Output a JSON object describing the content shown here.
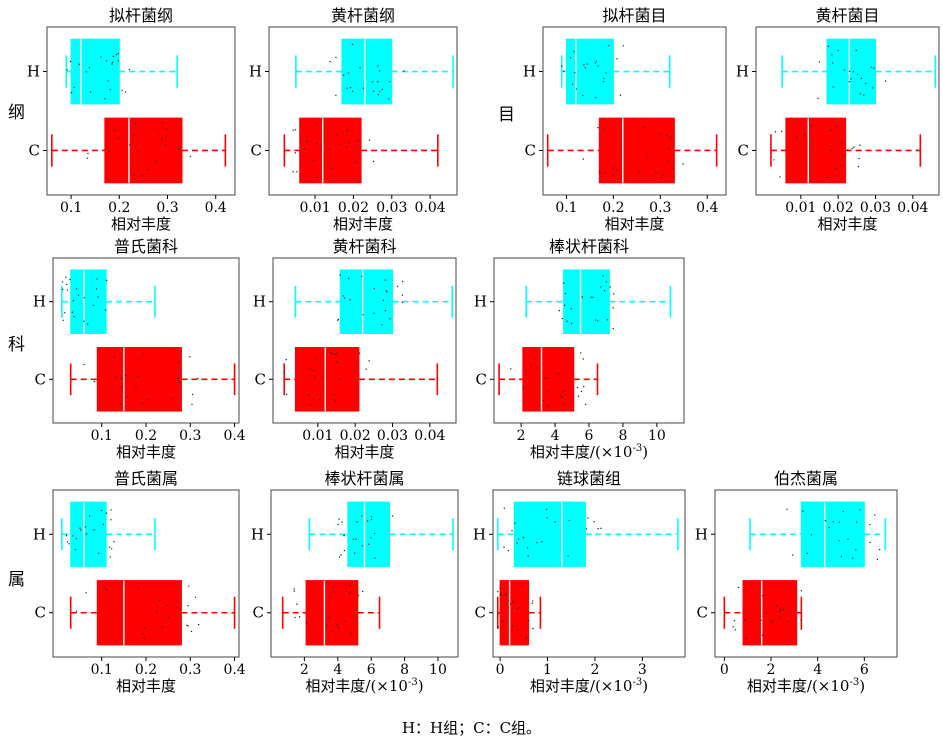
{
  "caption": "H：H组；C：C组。",
  "row_labels": [
    {
      "text": "纲",
      "panel": 0
    },
    {
      "text": "目",
      "panel": 2
    },
    {
      "text": "科",
      "panel": 4
    },
    {
      "text": "属",
      "panel": 7
    }
  ],
  "colors": {
    "H": "#00FFFF",
    "C": "#FF0000"
  },
  "chart_data": [
    {
      "type": "box",
      "title": "拟杆菌纲",
      "xlabel": "相对丰度",
      "xlim": [
        0.05,
        0.44
      ],
      "ticks": [
        0.1,
        0.2,
        0.3,
        0.4
      ],
      "tick_labels": [
        "0.1",
        "0.2",
        "0.3",
        "0.4"
      ],
      "groups": [
        {
          "name": "H",
          "min": 0.09,
          "q1": 0.1,
          "median": 0.12,
          "q3": 0.2,
          "max": 0.32
        },
        {
          "name": "C",
          "min": 0.06,
          "q1": 0.17,
          "median": 0.22,
          "q3": 0.33,
          "max": 0.42
        }
      ]
    },
    {
      "type": "box",
      "title": "黄杆菌纲",
      "xlabel": "相对丰度",
      "xlim": [
        -0.002,
        0.047
      ],
      "ticks": [
        0.01,
        0.02,
        0.03,
        0.04
      ],
      "tick_labels": [
        "0.01",
        "0.02",
        "0.03",
        "0.04"
      ],
      "groups": [
        {
          "name": "H",
          "min": 0.005,
          "q1": 0.017,
          "median": 0.023,
          "q3": 0.03,
          "max": 0.046
        },
        {
          "name": "C",
          "min": 0.002,
          "q1": 0.006,
          "median": 0.012,
          "q3": 0.022,
          "max": 0.042
        }
      ]
    },
    {
      "type": "box",
      "title": "拟杆菌目",
      "xlabel": "相对丰度",
      "xlim": [
        0.05,
        0.44
      ],
      "ticks": [
        0.1,
        0.2,
        0.3,
        0.4
      ],
      "tick_labels": [
        "0.1",
        "0.2",
        "0.3",
        "0.4"
      ],
      "groups": [
        {
          "name": "H",
          "min": 0.09,
          "q1": 0.1,
          "median": 0.12,
          "q3": 0.2,
          "max": 0.32
        },
        {
          "name": "C",
          "min": 0.06,
          "q1": 0.17,
          "median": 0.22,
          "q3": 0.33,
          "max": 0.42
        }
      ]
    },
    {
      "type": "box",
      "title": "黄杆菌目",
      "xlabel": "相对丰度",
      "xlim": [
        -0.002,
        0.047
      ],
      "ticks": [
        0.01,
        0.02,
        0.03,
        0.04
      ],
      "tick_labels": [
        "0.01",
        "0.02",
        "0.03",
        "0.04"
      ],
      "groups": [
        {
          "name": "H",
          "min": 0.005,
          "q1": 0.017,
          "median": 0.023,
          "q3": 0.03,
          "max": 0.046
        },
        {
          "name": "C",
          "min": 0.002,
          "q1": 0.006,
          "median": 0.012,
          "q3": 0.022,
          "max": 0.042
        }
      ]
    },
    {
      "type": "box",
      "title": "普氏菌科",
      "xlabel": "相对丰度",
      "xlim": [
        -0.01,
        0.41
      ],
      "ticks": [
        0.1,
        0.2,
        0.3,
        0.4
      ],
      "tick_labels": [
        "0.1",
        "0.2",
        "0.3",
        "0.4"
      ],
      "groups": [
        {
          "name": "H",
          "min": 0.01,
          "q1": 0.03,
          "median": 0.06,
          "q3": 0.11,
          "max": 0.22
        },
        {
          "name": "C",
          "min": 0.03,
          "q1": 0.09,
          "median": 0.15,
          "q3": 0.28,
          "max": 0.4
        }
      ]
    },
    {
      "type": "box",
      "title": "黄杆菌科",
      "xlabel": "相对丰度",
      "xlim": [
        -0.002,
        0.047
      ],
      "ticks": [
        0.01,
        0.02,
        0.03,
        0.04
      ],
      "tick_labels": [
        "0.01",
        "0.02",
        "0.03",
        "0.04"
      ],
      "groups": [
        {
          "name": "H",
          "min": 0.004,
          "q1": 0.016,
          "median": 0.022,
          "q3": 0.03,
          "max": 0.046
        },
        {
          "name": "C",
          "min": 0.001,
          "q1": 0.004,
          "median": 0.012,
          "q3": 0.021,
          "max": 0.042
        }
      ]
    },
    {
      "type": "box",
      "title": "棒状杆菌科",
      "xlabel": "相对丰度/(×10",
      "xlabel_sup": "-3",
      "xlabel_end": ")",
      "xlim": [
        0.4,
        11.6
      ],
      "ticks": [
        2,
        4,
        6,
        8,
        10
      ],
      "tick_labels": [
        "2",
        "4",
        "6",
        "8",
        "10"
      ],
      "groups": [
        {
          "name": "H",
          "min": 2.3,
          "q1": 4.5,
          "median": 5.5,
          "q3": 7.2,
          "max": 10.8
        },
        {
          "name": "C",
          "min": 0.7,
          "q1": 2.1,
          "median": 3.2,
          "q3": 5.1,
          "max": 6.5
        }
      ]
    },
    {
      "type": "box",
      "title": "普氏菌属",
      "xlabel": "相对丰度",
      "xlim": [
        -0.01,
        0.41
      ],
      "ticks": [
        0.1,
        0.2,
        0.3,
        0.4
      ],
      "tick_labels": [
        "0.1",
        "0.2",
        "0.3",
        "0.4"
      ],
      "groups": [
        {
          "name": "H",
          "min": 0.01,
          "q1": 0.03,
          "median": 0.06,
          "q3": 0.11,
          "max": 0.22
        },
        {
          "name": "C",
          "min": 0.03,
          "q1": 0.09,
          "median": 0.15,
          "q3": 0.28,
          "max": 0.4
        }
      ]
    },
    {
      "type": "box",
      "title": "棒状杆菌属",
      "xlabel": "相对丰度/(×10",
      "xlabel_sup": "-3",
      "xlabel_end": ")",
      "xlim": [
        0,
        11.2
      ],
      "ticks": [
        2,
        4,
        6,
        8,
        10
      ],
      "tick_labels": [
        "2",
        "4",
        "6",
        "8",
        "10"
      ],
      "groups": [
        {
          "name": "H",
          "min": 2.3,
          "q1": 4.6,
          "median": 5.6,
          "q3": 7.1,
          "max": 10.9
        },
        {
          "name": "C",
          "min": 0.7,
          "q1": 2.1,
          "median": 3.2,
          "q3": 5.2,
          "max": 6.5
        }
      ]
    },
    {
      "type": "box",
      "title": "链球菌组",
      "xlabel": "相对丰度/(×10",
      "xlabel_sup": "-3",
      "xlabel_end": ")",
      "xlim": [
        -0.15,
        3.9
      ],
      "ticks": [
        0,
        1,
        2,
        3
      ],
      "tick_labels": [
        "0",
        "1",
        "2",
        "3"
      ],
      "groups": [
        {
          "name": "H",
          "min": -0.05,
          "q1": 0.3,
          "median": 1.3,
          "q3": 1.8,
          "max": 3.75
        },
        {
          "name": "C",
          "min": -0.05,
          "q1": 0.0,
          "median": 0.2,
          "q3": 0.6,
          "max": 0.85
        }
      ]
    },
    {
      "type": "box",
      "title": "伯杰菌属",
      "xlabel": "相对丰度/(×10",
      "xlabel_sup": "-3",
      "xlabel_end": ")",
      "xlim": [
        -0.4,
        7.4
      ],
      "ticks": [
        0,
        2,
        4,
        6
      ],
      "tick_labels": [
        "0",
        "2",
        "4",
        "6"
      ],
      "groups": [
        {
          "name": "H",
          "min": 1.1,
          "q1": 3.3,
          "median": 4.3,
          "q3": 6.0,
          "max": 6.9
        },
        {
          "name": "C",
          "min": 0.0,
          "q1": 0.8,
          "median": 1.6,
          "q3": 3.1,
          "max": 3.3
        }
      ]
    }
  ]
}
